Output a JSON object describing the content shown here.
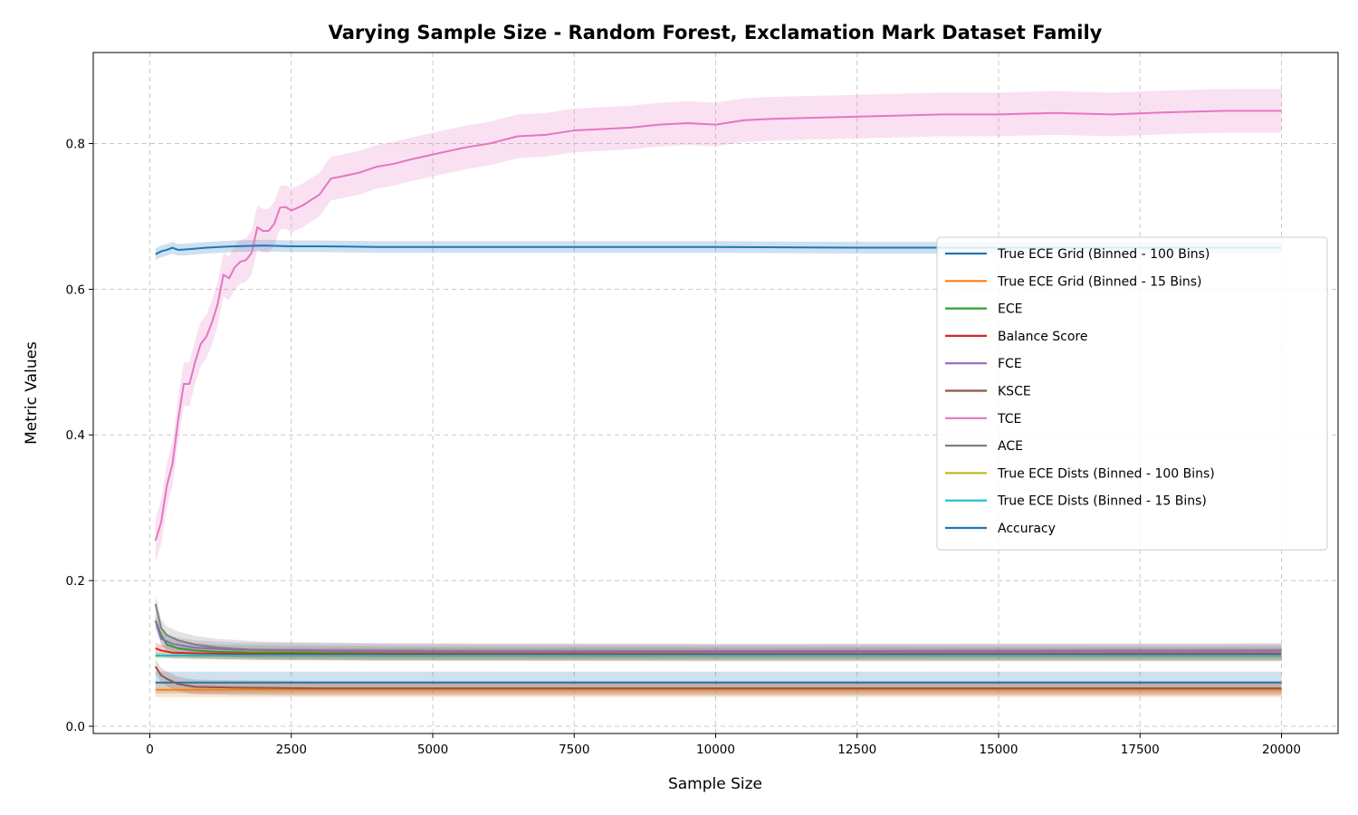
{
  "chart_data": {
    "type": "line",
    "title": "Varying Sample Size - Random Forest, Exclamation Mark Dataset Family",
    "xlabel": "Sample Size",
    "ylabel": "Metric Values",
    "xlim": [
      -1000,
      21000
    ],
    "ylim": [
      -0.01,
      0.925
    ],
    "xticks": [
      0,
      2500,
      5000,
      7500,
      10000,
      12500,
      15000,
      17500,
      20000
    ],
    "xtick_labels": [
      "0",
      "2500",
      "5000",
      "7500",
      "10000",
      "12500",
      "15000",
      "17500",
      "20000"
    ],
    "yticks": [
      0.0,
      0.2,
      0.4,
      0.6,
      0.8
    ],
    "ytick_labels": [
      "0.0",
      "0.2",
      "0.4",
      "0.6",
      "0.8"
    ],
    "grid": true,
    "legend_position": "center-right",
    "series": [
      {
        "name": "True ECE Grid (Binned - 100 Bins)",
        "color": "#1f77b4",
        "points": [
          [
            100,
            0.06
          ],
          [
            500,
            0.06
          ],
          [
            2000,
            0.06
          ],
          [
            5000,
            0.06
          ],
          [
            10000,
            0.06
          ],
          [
            15000,
            0.06
          ],
          [
            20000,
            0.06
          ]
        ],
        "band": 0.015
      },
      {
        "name": "True ECE Grid (Binned - 15 Bins)",
        "color": "#ff7f0e",
        "points": [
          [
            100,
            0.05
          ],
          [
            300,
            0.05
          ],
          [
            1000,
            0.05
          ],
          [
            5000,
            0.05
          ],
          [
            10000,
            0.05
          ],
          [
            15000,
            0.05
          ],
          [
            20000,
            0.05
          ]
        ],
        "band": 0.01
      },
      {
        "name": "ECE",
        "color": "#2ca02c",
        "points": [
          [
            100,
            0.145
          ],
          [
            200,
            0.125
          ],
          [
            300,
            0.112
          ],
          [
            500,
            0.107
          ],
          [
            800,
            0.104
          ],
          [
            1200,
            0.102
          ],
          [
            2000,
            0.101
          ],
          [
            4000,
            0.1
          ],
          [
            10000,
            0.1
          ],
          [
            20000,
            0.1
          ]
        ],
        "band": 0.01
      },
      {
        "name": "Balance Score",
        "color": "#d62728",
        "points": [
          [
            100,
            0.107
          ],
          [
            200,
            0.104
          ],
          [
            400,
            0.101
          ],
          [
            800,
            0.1
          ],
          [
            2000,
            0.099
          ],
          [
            5000,
            0.099
          ],
          [
            10000,
            0.099
          ],
          [
            20000,
            0.099
          ]
        ],
        "band": 0.008
      },
      {
        "name": "FCE",
        "color": "#9467bd",
        "points": [
          [
            100,
            0.145
          ],
          [
            200,
            0.12
          ],
          [
            400,
            0.113
          ],
          [
            800,
            0.108
          ],
          [
            1500,
            0.105
          ],
          [
            3000,
            0.104
          ],
          [
            6000,
            0.103
          ],
          [
            10000,
            0.103
          ],
          [
            20000,
            0.104
          ]
        ],
        "band": 0.01
      },
      {
        "name": "KSCE",
        "color": "#8c564b",
        "points": [
          [
            100,
            0.082
          ],
          [
            200,
            0.07
          ],
          [
            300,
            0.065
          ],
          [
            500,
            0.058
          ],
          [
            800,
            0.054
          ],
          [
            1500,
            0.053
          ],
          [
            3000,
            0.052
          ],
          [
            6000,
            0.052
          ],
          [
            10000,
            0.052
          ],
          [
            20000,
            0.052
          ]
        ],
        "band": 0.01
      },
      {
        "name": "TCE",
        "color": "#e377c2",
        "points": [
          [
            100,
            0.255
          ],
          [
            200,
            0.28
          ],
          [
            300,
            0.33
          ],
          [
            400,
            0.36
          ],
          [
            500,
            0.42
          ],
          [
            600,
            0.47
          ],
          [
            700,
            0.47
          ],
          [
            800,
            0.5
          ],
          [
            900,
            0.525
          ],
          [
            1000,
            0.535
          ],
          [
            1100,
            0.555
          ],
          [
            1200,
            0.58
          ],
          [
            1300,
            0.62
          ],
          [
            1400,
            0.615
          ],
          [
            1500,
            0.63
          ],
          [
            1600,
            0.638
          ],
          [
            1700,
            0.64
          ],
          [
            1800,
            0.65
          ],
          [
            1900,
            0.685
          ],
          [
            2000,
            0.68
          ],
          [
            2100,
            0.68
          ],
          [
            2200,
            0.69
          ],
          [
            2300,
            0.712
          ],
          [
            2400,
            0.713
          ],
          [
            2500,
            0.708
          ],
          [
            2700,
            0.715
          ],
          [
            3000,
            0.73
          ],
          [
            3200,
            0.752
          ],
          [
            3400,
            0.755
          ],
          [
            3700,
            0.76
          ],
          [
            4000,
            0.768
          ],
          [
            4300,
            0.772
          ],
          [
            4600,
            0.778
          ],
          [
            5000,
            0.785
          ],
          [
            5300,
            0.79
          ],
          [
            5600,
            0.795
          ],
          [
            6000,
            0.8
          ],
          [
            6500,
            0.81
          ],
          [
            7000,
            0.812
          ],
          [
            7500,
            0.818
          ],
          [
            8000,
            0.82
          ],
          [
            8500,
            0.822
          ],
          [
            9000,
            0.826
          ],
          [
            9500,
            0.828
          ],
          [
            10000,
            0.826
          ],
          [
            10500,
            0.832
          ],
          [
            11000,
            0.834
          ],
          [
            12000,
            0.836
          ],
          [
            13000,
            0.838
          ],
          [
            14000,
            0.84
          ],
          [
            15000,
            0.84
          ],
          [
            16000,
            0.842
          ],
          [
            17000,
            0.84
          ],
          [
            18000,
            0.843
          ],
          [
            19000,
            0.845
          ],
          [
            20000,
            0.845
          ]
        ],
        "band": 0.03
      },
      {
        "name": "ACE",
        "color": "#7f7f7f",
        "points": [
          [
            100,
            0.168
          ],
          [
            200,
            0.135
          ],
          [
            300,
            0.125
          ],
          [
            500,
            0.118
          ],
          [
            800,
            0.112
          ],
          [
            1200,
            0.108
          ],
          [
            2000,
            0.104
          ],
          [
            4000,
            0.102
          ],
          [
            10000,
            0.101
          ],
          [
            20000,
            0.101
          ]
        ],
        "band": 0.012
      },
      {
        "name": "True ECE Dists (Binned - 100 Bins)",
        "color": "#bcbd22",
        "points": [
          [
            100,
            0.097
          ],
          [
            1000,
            0.097
          ],
          [
            5000,
            0.097
          ],
          [
            10000,
            0.097
          ],
          [
            20000,
            0.097
          ]
        ],
        "band": 0.004
      },
      {
        "name": "True ECE Dists (Binned - 15 Bins)",
        "color": "#17becf",
        "points": [
          [
            100,
            0.097
          ],
          [
            1000,
            0.097
          ],
          [
            5000,
            0.097
          ],
          [
            10000,
            0.097
          ],
          [
            20000,
            0.097
          ]
        ],
        "band": 0.003
      },
      {
        "name": "Accuracy",
        "color": "#1f77b4",
        "points": [
          [
            100,
            0.648
          ],
          [
            200,
            0.652
          ],
          [
            300,
            0.654
          ],
          [
            400,
            0.657
          ],
          [
            500,
            0.654
          ],
          [
            700,
            0.655
          ],
          [
            1000,
            0.657
          ],
          [
            1500,
            0.659
          ],
          [
            2000,
            0.66
          ],
          [
            2500,
            0.659
          ],
          [
            3000,
            0.659
          ],
          [
            4000,
            0.658
          ],
          [
            5000,
            0.658
          ],
          [
            7500,
            0.658
          ],
          [
            10000,
            0.658
          ],
          [
            12500,
            0.657
          ],
          [
            15000,
            0.657
          ],
          [
            17500,
            0.657
          ],
          [
            20000,
            0.657
          ]
        ],
        "band": 0.008
      }
    ]
  }
}
